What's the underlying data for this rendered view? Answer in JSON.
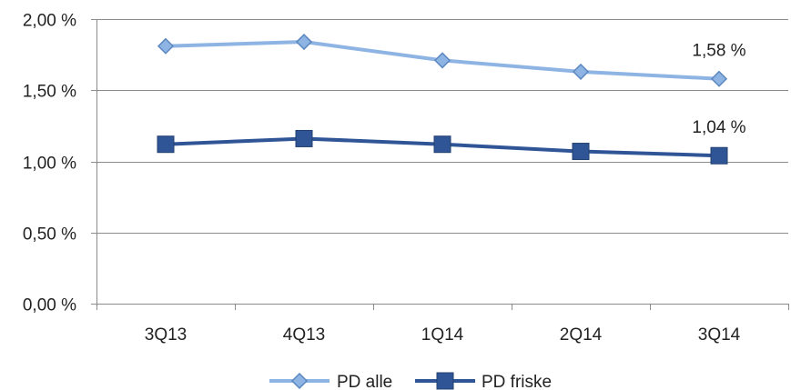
{
  "chart_data": {
    "type": "line",
    "categories": [
      "3Q13",
      "4Q13",
      "1Q14",
      "2Q14",
      "3Q14"
    ],
    "ylim": [
      0,
      2
    ],
    "yticks": [
      0,
      0.5,
      1,
      1.5,
      2
    ],
    "ytick_labels": [
      "0,00 %",
      "0,50 %",
      "1,00 %",
      "1,50 %",
      "2,00 %"
    ],
    "grid": true,
    "legend_position": "bottom",
    "series": [
      {
        "name": "PD alle",
        "values": [
          1.81,
          1.84,
          1.71,
          1.63,
          1.58
        ],
        "color": "#8eb4e3",
        "marker": "diamond",
        "last_label": "1,58 %"
      },
      {
        "name": "PD friske",
        "values": [
          1.12,
          1.16,
          1.12,
          1.07,
          1.04
        ],
        "color": "#2f5597",
        "marker": "square",
        "last_label": "1,04 %"
      }
    ]
  }
}
